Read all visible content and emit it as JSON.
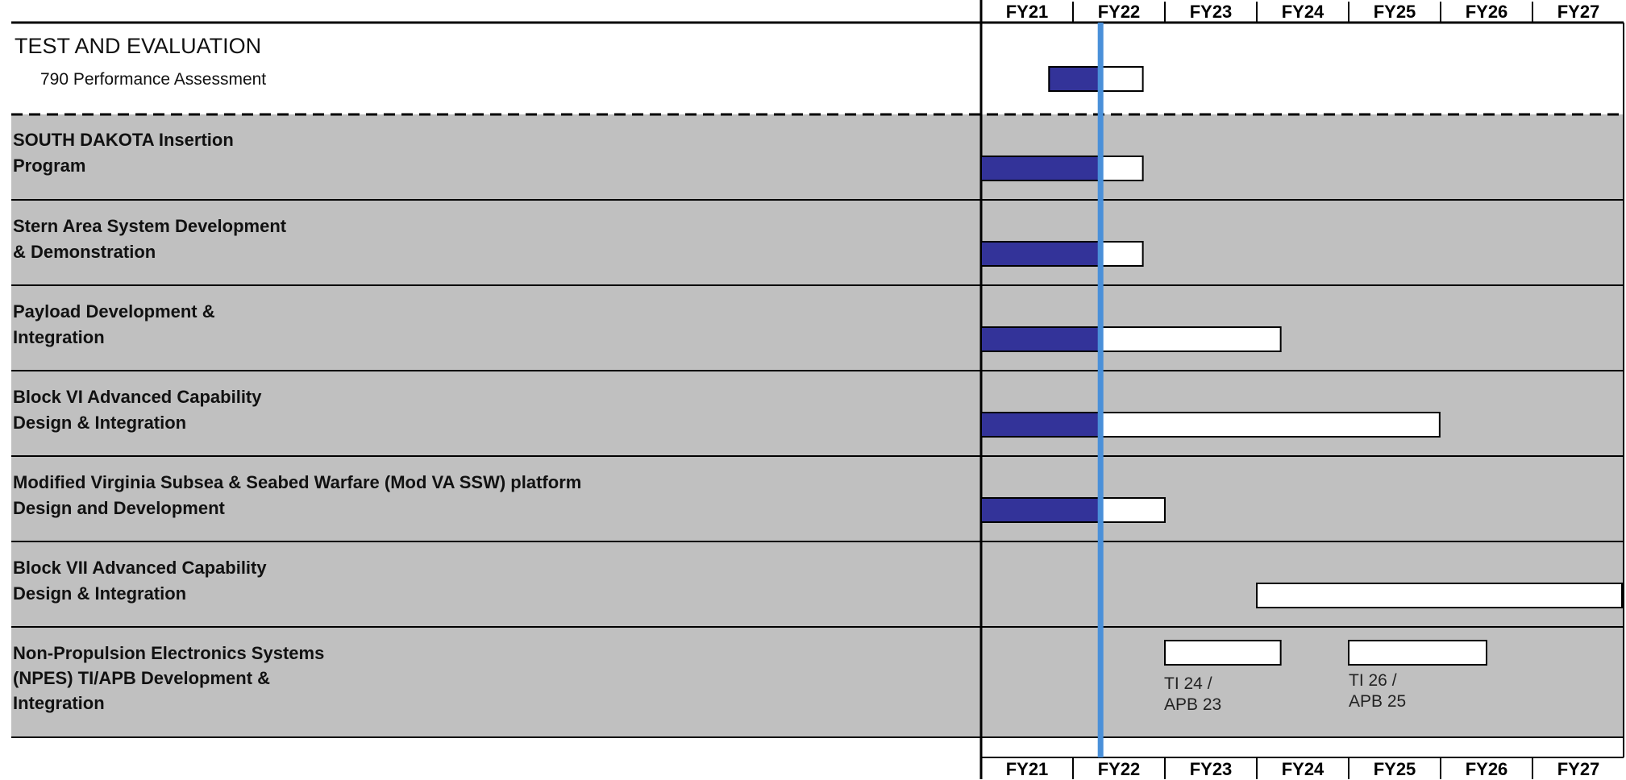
{
  "chart_data": {
    "type": "gantt",
    "years": [
      "FY21",
      "FY22",
      "FY23",
      "FY24",
      "FY25",
      "FY26",
      "FY27"
    ],
    "current_marker": 22.3,
    "colors": {
      "completed": "#333399",
      "planned": "#ffffff",
      "row_band": "#c0c0c0",
      "marker": "#4a90d9"
    },
    "header": {
      "title": "TEST AND EVALUATION",
      "item": "790 Performance Assessment",
      "bars": [
        {
          "start": 21.74,
          "end": 22.76,
          "done_until": 22.3
        }
      ]
    },
    "rows": [
      {
        "lines": [
          "SOUTH DAKOTA Insertion",
          "Program"
        ],
        "bars": [
          {
            "start": 21.0,
            "end": 22.76,
            "done_until": 22.3
          }
        ]
      },
      {
        "lines": [
          "Stern Area System Development",
          "& Demonstration"
        ],
        "bars": [
          {
            "start": 21.0,
            "end": 22.76,
            "done_until": 22.3
          }
        ]
      },
      {
        "lines": [
          "Payload Development &",
          "Integration"
        ],
        "bars": [
          {
            "start": 21.0,
            "end": 24.26,
            "done_until": 22.3
          }
        ]
      },
      {
        "lines": [
          "Block VI Advanced Capability",
          "Design & Integration"
        ],
        "bars": [
          {
            "start": 21.0,
            "end": 25.99,
            "done_until": 22.3
          }
        ]
      },
      {
        "lines": [
          "Modified Virginia Subsea & Seabed Warfare (Mod VA SSW) platform",
          "Design and Development"
        ],
        "bars": [
          {
            "start": 21.0,
            "end": 23.0,
            "done_until": 22.3
          }
        ]
      },
      {
        "lines": [
          "Block VII Advanced Capability",
          "Design & Integration"
        ],
        "bars": [
          {
            "start": 24.0,
            "end": 28.0
          }
        ]
      },
      {
        "lines": [
          "Non-Propulsion Electronics Systems",
          "(NPES) TI/APB Development &",
          "Integration"
        ],
        "bars": [
          {
            "start": 23.0,
            "end": 24.26,
            "note": [
              "TI 24 /",
              "APB 23"
            ]
          },
          {
            "start": 25.0,
            "end": 26.5,
            "note": [
              "TI 26 /",
              "APB 25"
            ]
          }
        ]
      }
    ]
  }
}
